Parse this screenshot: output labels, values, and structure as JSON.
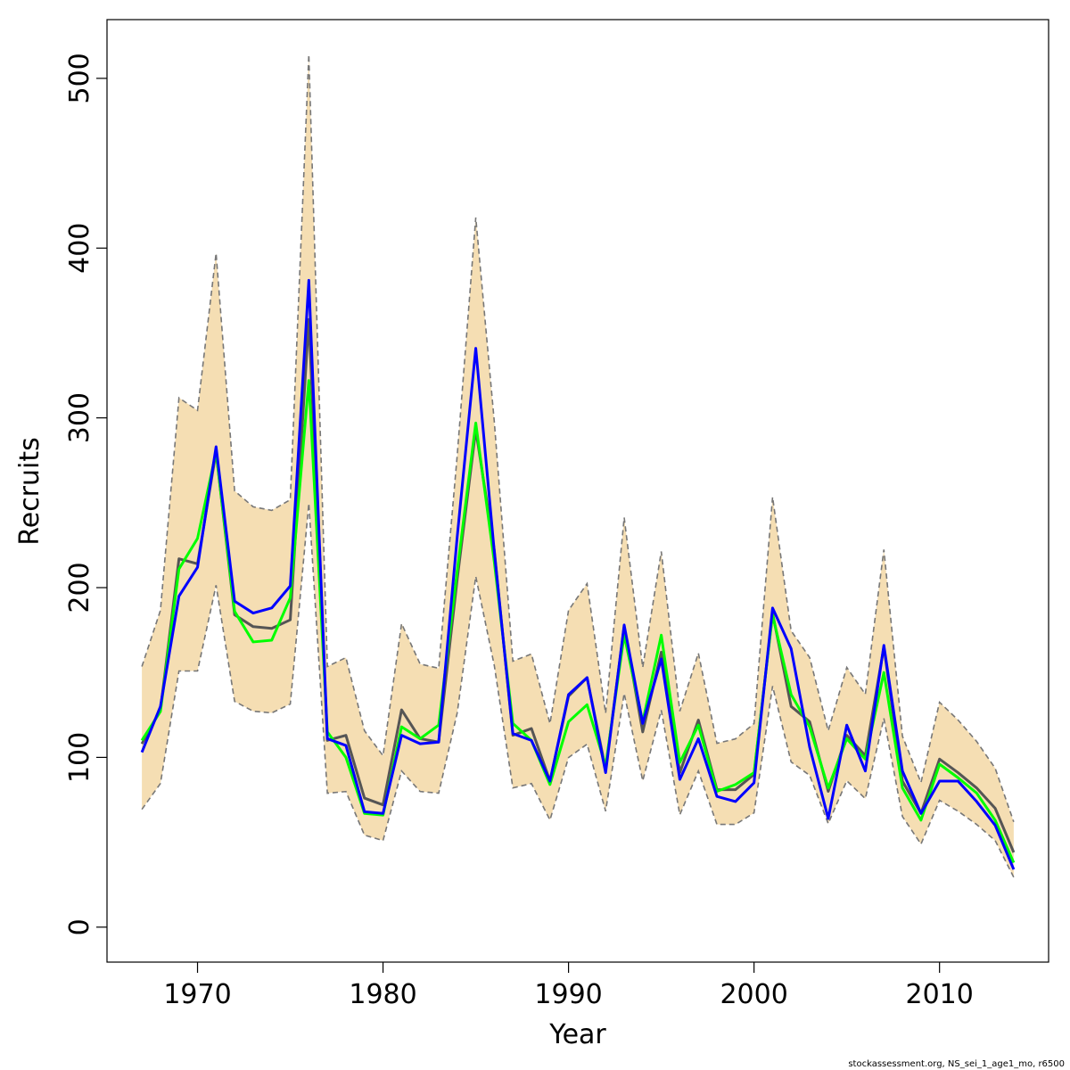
{
  "chart_data": {
    "type": "line",
    "xlabel": "Year",
    "ylabel": "Recruits",
    "caption": "stockassessment.org, NS_sei_1_age1_mo, r6500",
    "x": [
      1967,
      1968,
      1969,
      1970,
      1971,
      1972,
      1973,
      1974,
      1975,
      1976,
      1977,
      1978,
      1979,
      1980,
      1981,
      1982,
      1983,
      1984,
      1985,
      1986,
      1987,
      1988,
      1989,
      1990,
      1991,
      1992,
      1993,
      1994,
      1995,
      1996,
      1997,
      1998,
      1999,
      2000,
      2001,
      2002,
      2003,
      2004,
      2005,
      2006,
      2007,
      2008,
      2009,
      2010,
      2011,
      2012,
      2013,
      2014
    ],
    "band": {
      "color": "#f5deb3",
      "edge_color": "#777777",
      "upper": [
        153.5,
        186.6,
        311.8,
        304.4,
        397,
        257,
        247.6,
        245.5,
        251.8,
        514,
        153.5,
        158.8,
        115.7,
        101,
        178.8,
        155,
        152.5,
        278,
        418,
        297.6,
        156.7,
        160.9,
        119.9,
        186.6,
        202.4,
        126,
        241.3,
        153,
        221.3,
        127.2,
        161.4,
        108.3,
        110.9,
        119.9,
        253.4,
        174.6,
        158.8,
        115.7,
        153,
        137.2,
        222.4,
        112.5,
        85.2,
        132.5,
        122,
        109.4,
        93.6,
        62
      ],
      "lower": [
        69.4,
        84.6,
        150.9,
        150.9,
        201.4,
        133,
        127.2,
        126.2,
        131.4,
        249.7,
        78.9,
        79.9,
        54.2,
        51,
        92,
        79.9,
        78.9,
        126.2,
        206.6,
        154,
        82,
        84.6,
        63.1,
        99.9,
        107.8,
        68.3,
        137.7,
        86.2,
        127.8,
        66.2,
        92,
        60.5,
        60.5,
        67.3,
        142,
        97.3,
        89.4,
        61,
        86.2,
        75.7,
        123,
        65.2,
        48.9,
        74.7,
        68.3,
        60.5,
        51,
        29.4
      ]
    },
    "series": [
      {
        "color": "#555555",
        "values": [
          108,
          128,
          217,
          214,
          280,
          184,
          177,
          176,
          181,
          358,
          110,
          113,
          76,
          72,
          128,
          111,
          109,
          205,
          293,
          222,
          113,
          117,
          86,
          136,
          147,
          93,
          177,
          115,
          162,
          91,
          122,
          81,
          81,
          90,
          185,
          130,
          121,
          80,
          113,
          101,
          165,
          86,
          67,
          99,
          91,
          82,
          70,
          44
        ]
      },
      {
        "color": "#00ff00",
        "values": [
          110,
          127,
          211,
          229,
          280,
          186,
          168,
          169,
          194,
          322,
          115,
          100,
          67,
          66,
          118,
          111,
          119,
          210,
          297,
          215,
          120,
          110,
          84,
          121,
          131,
          95,
          172,
          121,
          172,
          97,
          119,
          80,
          84,
          91,
          184,
          137,
          118,
          82,
          111,
          99,
          150,
          82,
          63,
          96,
          88,
          79,
          63,
          38
        ]
      },
      {
        "color": "#0000ff",
        "values": [
          103,
          130,
          195,
          212,
          283,
          192,
          185,
          188,
          201,
          381,
          111,
          107,
          68,
          67,
          113,
          108,
          109,
          230,
          341,
          221,
          114,
          110,
          86,
          137,
          147,
          91,
          178,
          120,
          158,
          87,
          111,
          77,
          74,
          85,
          188,
          164,
          106,
          64,
          119,
          92,
          166,
          92,
          67,
          86,
          86,
          74,
          60,
          34
        ]
      }
    ],
    "xlim": [
      1965.12,
      2015.88
    ],
    "ylim": [
      -20.6,
      534.6
    ],
    "xticks": [
      1970,
      1980,
      1990,
      2000,
      2010
    ],
    "yticks": [
      0,
      100,
      200,
      300,
      400,
      500
    ]
  }
}
